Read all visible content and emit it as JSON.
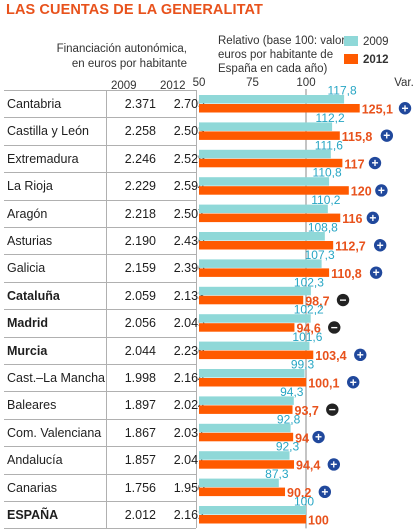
{
  "title": "LAS CUENTAS DE LA GENERALITAT",
  "left_header": [
    "Financiación autonómica,",
    "en euros por habitante"
  ],
  "right_header": [
    "Relativo (base 100: valor",
    "euros por habitante de",
    "España en cada año)"
  ],
  "colors": {
    "title": "#e8521c",
    "series_2009": "#8fd8d8",
    "series_2012": "#ff5a00",
    "label_2009": "#27a6c4",
    "label_2012": "#e8521c",
    "baseline": "#8a8a8a",
    "plus_badge": "#20489c",
    "minus_badge": "#222222"
  },
  "chart_data": {
    "type": "bar",
    "orientation": "horizontal",
    "title": "LAS CUENTAS DE LA GENERALITAT",
    "columns": [
      "2009",
      "2012"
    ],
    "categories": [
      "Cantabria",
      "Castilla y León",
      "Extremadura",
      "La Rioja",
      "Aragón",
      "Asturias",
      "Galicia",
      "Cataluña",
      "Madrid",
      "Murcia",
      "Cast.–La Mancha",
      "Baleares",
      "Com. Valenciana",
      "Andalucía",
      "Canarias",
      "ESPAÑA"
    ],
    "bold_categories": [
      "Cataluña",
      "Madrid",
      "Murcia",
      "ESPAÑA"
    ],
    "table_values": {
      "2009": [
        "2.371",
        "2.258",
        "2.246",
        "2.229",
        "2.218",
        "2.190",
        "2.159",
        "2.059",
        "2.056",
        "2.044",
        "1.998",
        "1.897",
        "1.867",
        "1.857",
        "1.756",
        "2.012"
      ],
      "2012": [
        "2.705",
        "2.503",
        "2.529",
        "2.594",
        "2.507",
        "2.436",
        "2.396",
        "2.133",
        "2.045",
        "2.236",
        "2.164",
        "2.024",
        "2.031",
        "2.041",
        "1.950",
        "2.162"
      ]
    },
    "series": [
      {
        "name": "2009",
        "values": [
          117.8,
          112.2,
          111.6,
          110.8,
          110.2,
          108.8,
          107.3,
          102.3,
          102.2,
          101.6,
          99.3,
          94.3,
          92.8,
          92.3,
          87.3,
          100
        ],
        "labels": [
          "117,8",
          "112,2",
          "111,6",
          "110,8",
          "110,2",
          "108,8",
          "107,3",
          "102,3",
          "102,2",
          "101,6",
          "99,3",
          "94,3",
          "92,8",
          "92,3",
          "87,3",
          "100"
        ]
      },
      {
        "name": "2012",
        "values": [
          125.1,
          115.8,
          117,
          120,
          116,
          112.7,
          110.8,
          98.7,
          94.6,
          103.4,
          100.1,
          93.7,
          94,
          94.4,
          90.2,
          100
        ],
        "labels": [
          "125,1",
          "115,8",
          "117",
          "120",
          "116",
          "112,7",
          "110,8",
          "98,7",
          "94,6",
          "103,4",
          "100,1",
          "93,7",
          "94",
          "94,4",
          "90,2",
          "100"
        ]
      }
    ],
    "variation_header": "Var.",
    "variation": [
      "+",
      "+",
      "+",
      "+",
      "+",
      "+",
      "+",
      "−",
      "−",
      "+",
      "+",
      "−",
      "+",
      "+",
      "+",
      ""
    ],
    "x_ticks": [
      "50",
      "75",
      "100"
    ],
    "x_tick_values": [
      50,
      75,
      100
    ],
    "xlim": [
      50,
      125.1
    ]
  }
}
